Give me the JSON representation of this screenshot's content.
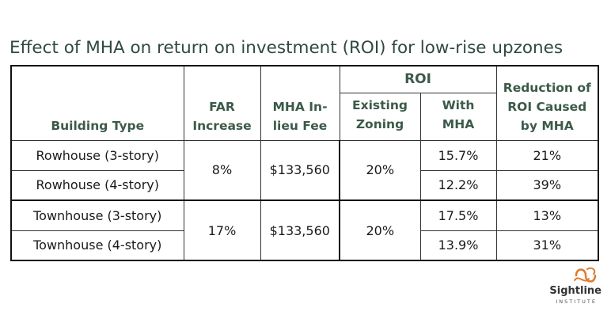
{
  "title": "Effect of MHA on return on investment (ROI) for low-rise upzones",
  "headers": {
    "building_type": "Building Type",
    "far_increase": [
      "FAR",
      "Increase"
    ],
    "mha_fee": [
      "MHA In-",
      "lieu Fee"
    ],
    "roi": "ROI",
    "existing_zoning": [
      "Existing",
      "Zoning"
    ],
    "with_mha": [
      "With",
      "MHA"
    ],
    "reduction": [
      "Reduction of",
      "ROI Caused",
      "by MHA"
    ]
  },
  "rows": [
    {
      "building_type": "Rowhouse (3-story)",
      "with_mha": "15.7%",
      "reduction": "21%"
    },
    {
      "building_type": "Rowhouse (4-story)",
      "with_mha": "12.2%",
      "reduction": "39%"
    },
    {
      "building_type": "Townhouse (3-story)",
      "with_mha": "17.5%",
      "reduction": "13%"
    },
    {
      "building_type": "Townhouse (4-story)",
      "with_mha": "13.9%",
      "reduction": "31%"
    }
  ],
  "groups": [
    {
      "far_increase": "8%",
      "mha_fee": "$133,560",
      "existing_zoning": "20%"
    },
    {
      "far_increase": "17%",
      "mha_fee": "$133,560",
      "existing_zoning": "20%"
    }
  ],
  "logo": {
    "name": "Sightline",
    "sub": "INSTITUTE",
    "colors": {
      "mark": "#e07a2e",
      "text": "#333333"
    }
  },
  "colors": {
    "title": "#2f4a3c",
    "header": "#3c5a49",
    "border": "#111111"
  }
}
